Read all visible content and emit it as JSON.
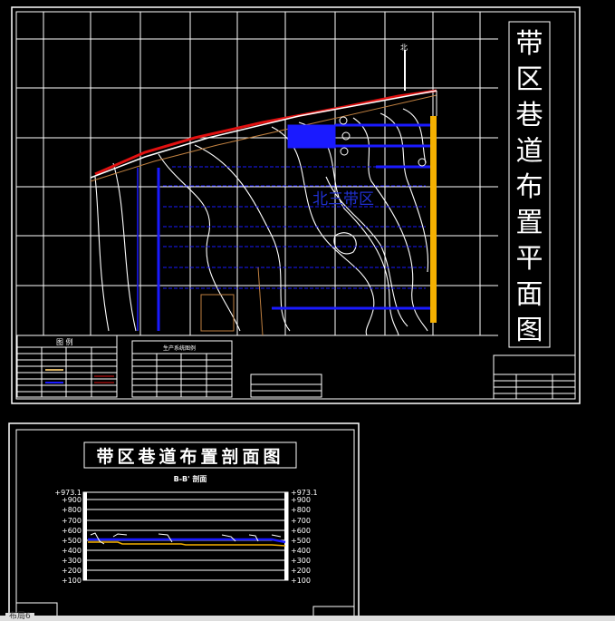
{
  "plan": {
    "title_chars": [
      "带",
      "区",
      "巷",
      "道",
      "布",
      "置",
      "平",
      "面",
      "图"
    ],
    "zone_label": "北三带区",
    "north_label": "北",
    "legend_title": "图 例",
    "legend2_title": "生产系统图例",
    "colors": {
      "roadway": "#1a1aff",
      "boundary": "#e01010",
      "belt": "#f5b000",
      "contour": "#ffffff",
      "grid": "#ffffff"
    }
  },
  "section": {
    "title": "带区巷道布置剖面图",
    "subtitle": "B-B' 剖面",
    "left_levels": [
      "+973.1",
      "+900",
      "+800",
      "+700",
      "+600",
      "+500",
      "+400",
      "+300",
      "+200",
      "+100"
    ],
    "right_levels": [
      "+973.1",
      "+900",
      "+800",
      "+700",
      "+600",
      "+500",
      "+400",
      "+300",
      "+200",
      "+100"
    ]
  },
  "status": {
    "tab": "布局6"
  }
}
